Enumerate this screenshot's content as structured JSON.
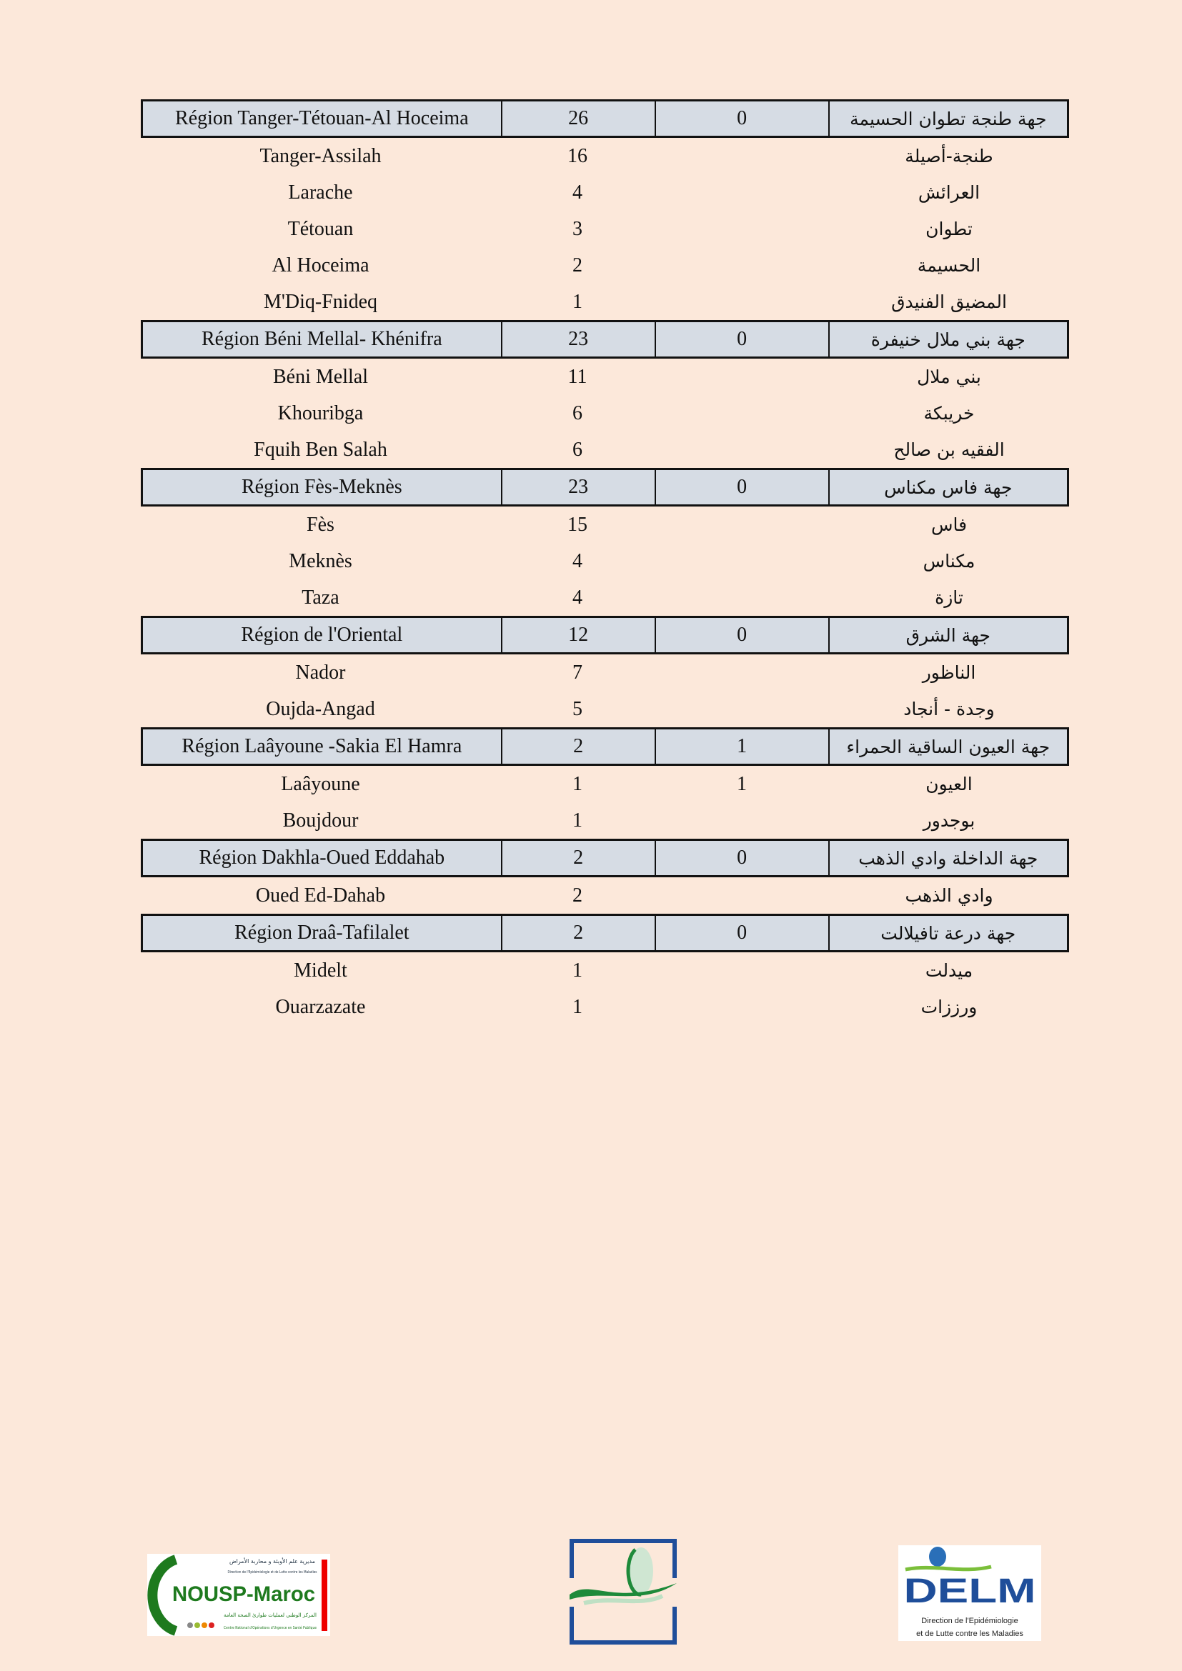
{
  "regions": [
    {
      "fr": "Région Tanger-Tétouan-Al Hoceima",
      "total": "26",
      "col3": "0",
      "ar": "جهة طنجة تطوان الحسيمة",
      "rows": [
        {
          "fr": "Tanger-Assilah",
          "count": "16",
          "col3": "",
          "ar": "طنجة-أصيلة"
        },
        {
          "fr": "Larache",
          "count": "4",
          "col3": "",
          "ar": "العرائش"
        },
        {
          "fr": "Tétouan",
          "count": "3",
          "col3": "",
          "ar": "تطوان"
        },
        {
          "fr": "Al Hoceima",
          "count": "2",
          "col3": "",
          "ar": "الحسيمة"
        },
        {
          "fr": "M'Diq-Fnideq",
          "count": "1",
          "col3": "",
          "ar": "المضيق الفنيدق"
        }
      ]
    },
    {
      "fr": "Région Béni Mellal- Khénifra",
      "total": "23",
      "col3": "0",
      "ar": "جهة بني ملال خنيفرة",
      "rows": [
        {
          "fr": "Béni Mellal",
          "count": "11",
          "col3": "",
          "ar": "بني ملال"
        },
        {
          "fr": "Khouribga",
          "count": "6",
          "col3": "",
          "ar": "خريبكة"
        },
        {
          "fr": "Fquih Ben Salah",
          "count": "6",
          "col3": "",
          "ar": "الفقيه بن صالح"
        }
      ]
    },
    {
      "fr": "Région Fès-Meknès",
      "total": "23",
      "col3": "0",
      "ar": "جهة فاس مكناس",
      "rows": [
        {
          "fr": "Fès",
          "count": "15",
          "col3": "",
          "ar": "فاس"
        },
        {
          "fr": "Meknès",
          "count": "4",
          "col3": "",
          "ar": "مكناس"
        },
        {
          "fr": "Taza",
          "count": "4",
          "col3": "",
          "ar": "تازة"
        }
      ]
    },
    {
      "fr": "Région de l'Oriental",
      "total": "12",
      "col3": "0",
      "ar": "جهة الشرق",
      "rows": [
        {
          "fr": "Nador",
          "count": "7",
          "col3": "",
          "ar": "الناظور"
        },
        {
          "fr": "Oujda-Angad",
          "count": "5",
          "col3": "",
          "ar": "وجدة - أنجاد"
        }
      ]
    },
    {
      "fr": "Région Laâyoune -Sakia El Hamra",
      "total": "2",
      "col3": "1",
      "ar": "جهة العيون الساقية الحمراء",
      "rows": [
        {
          "fr": "Laâyoune",
          "count": "1",
          "col3": "1",
          "ar": "العيون"
        },
        {
          "fr": "Boujdour",
          "count": "1",
          "col3": "",
          "ar": "بوجدور"
        }
      ]
    },
    {
      "fr": "Région Dakhla-Oued Eddahab",
      "total": "2",
      "col3": "0",
      "ar": "جهة الداخلة وادي الذهب",
      "rows": [
        {
          "fr": "Oued Ed-Dahab",
          "count": "2",
          "col3": "",
          "ar": "وادي الذهب"
        }
      ]
    },
    {
      "fr": "Région Draâ-Tafilalet",
      "total": "2",
      "col3": "0",
      "ar": "جهة درعة تافيلالت",
      "rows": [
        {
          "fr": "Midelt",
          "count": "1",
          "col3": "",
          "ar": "ميدلت"
        },
        {
          "fr": "Ouarzazate",
          "count": "1",
          "col3": "",
          "ar": "ورززات"
        }
      ]
    }
  ],
  "logos": {
    "left": {
      "text": "NOUSP-Maroc",
      "ar_top": "مديرية علم الأوبئة و محاربة الأمراض",
      "fr_top": "Direction de l'Epidémiologie et de Lutte contre les Maladies",
      "ar_bottom": "المركز الوطني لعمليات طوارئ الصحة العامة",
      "fr_bottom": "Centre National d'Opérations d'Urgence en Santé Publique"
    },
    "center": {
      "name": "ministry-emblem"
    },
    "right": {
      "text": "DELM",
      "subtitle1": "Direction de l'Epidémiologie",
      "subtitle2": "et de Lutte contre les Maladies"
    }
  },
  "colors": {
    "background": "#fce8da",
    "header_fill": "#d6dce4",
    "green": "#1e8a3a",
    "blue": "#1f4e9a"
  }
}
